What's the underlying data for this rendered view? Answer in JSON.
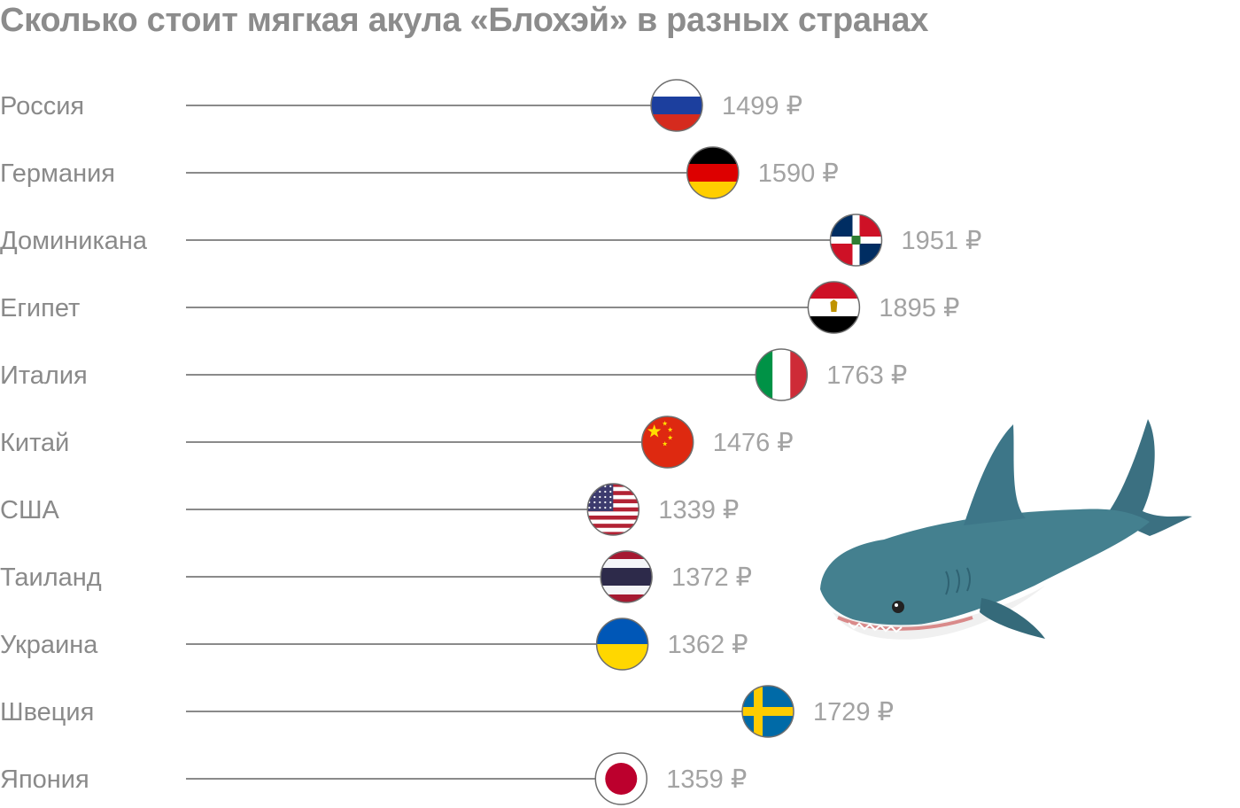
{
  "title": "Сколько стоит мягкая акула «Блохэй» в разных странах",
  "chart_data": {
    "type": "lollipop",
    "title": "Сколько стоит мягкая акула «Блохэй» в разных странах",
    "unit": "₽",
    "categories": [
      "Россия",
      "Германия",
      "Доминикана",
      "Египет",
      "Италия",
      "Китай",
      "США",
      "Таиланд",
      "Украина",
      "Швеция",
      "Япония"
    ],
    "values": [
      1499,
      1590,
      1951,
      1895,
      1763,
      1476,
      1339,
      1372,
      1362,
      1729,
      1359
    ],
    "value_labels": [
      "1499 ₽",
      "1590 ₽",
      "1951 ₽",
      "1895 ₽",
      "1763 ₽",
      "1476 ₽",
      "1339 ₽",
      "1372 ₽",
      "1362 ₽",
      "1729 ₽",
      "1359 ₽"
    ],
    "markers": [
      "flag-russia-icon",
      "flag-germany-icon",
      "flag-dominican-republic-icon",
      "flag-egypt-icon",
      "flag-italy-icon",
      "flag-china-icon",
      "flag-usa-icon",
      "flag-thailand-icon",
      "flag-ukraine-icon",
      "flag-sweden-icon",
      "flag-japan-icon"
    ],
    "grid": false,
    "legend": "none"
  },
  "illustration": "shark-plush-image",
  "colors": {
    "text": "#8a8a8a",
    "title": "#8c8c8c",
    "shark_body": "#3f7686",
    "shark_belly": "#f1f1f1"
  }
}
